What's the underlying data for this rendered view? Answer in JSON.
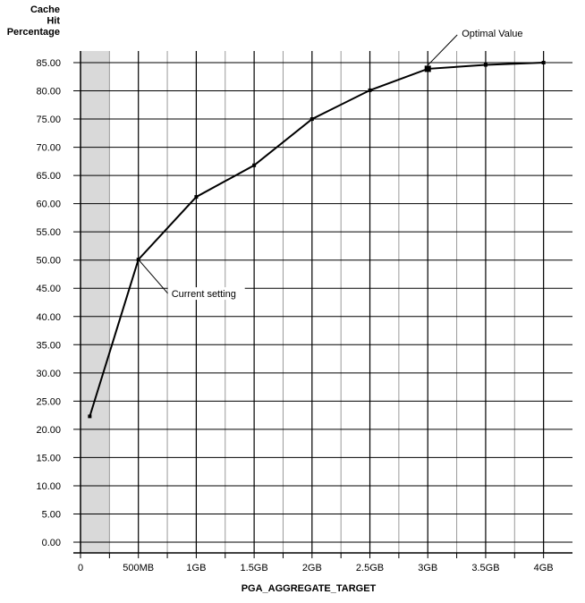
{
  "chart_data": {
    "type": "line",
    "title": "",
    "xlabel": "PGA_AGGREGATE_TARGET",
    "ylabel_lines": [
      "Cache",
      "Hit",
      "Percentage"
    ],
    "x_tick_labels": [
      "0",
      "500MB",
      "1GB",
      "1.5GB",
      "2GB",
      "2.5GB",
      "3GB",
      "3.5GB",
      "4GB"
    ],
    "x_tick_values_mb": [
      0,
      500,
      1000,
      1500,
      2000,
      2500,
      3000,
      3500,
      4000
    ],
    "xlim_mb": [
      0,
      4250
    ],
    "y_tick_labels": [
      "0.00",
      "5.00",
      "10.00",
      "15.00",
      "20.00",
      "25.00",
      "30.00",
      "35.00",
      "40.00",
      "45.00",
      "50.00",
      "55.00",
      "60.00",
      "65.00",
      "70.00",
      "75.00",
      "80.00",
      "85.00"
    ],
    "ylim": [
      0,
      87
    ],
    "grid": true,
    "shaded_region_mb": [
      0,
      250
    ],
    "series": [
      {
        "x_mb": [
          80,
          500,
          1000,
          1500,
          2000,
          2500,
          3000,
          3500,
          4000
        ],
        "y": [
          22.3,
          50.1,
          61.2,
          66.8,
          75.0,
          80.1,
          83.9,
          84.6,
          85.0
        ]
      }
    ],
    "annotations": [
      {
        "text": "Current setting",
        "x_mb": 500,
        "y": 50.1
      },
      {
        "text": "Optimal Value",
        "x_mb": 3000,
        "y": 83.9
      }
    ],
    "colors": {
      "line": "#000000",
      "shade": "#d9d9d9",
      "grid_major": "#000000",
      "grid_minor": "#999999"
    }
  }
}
